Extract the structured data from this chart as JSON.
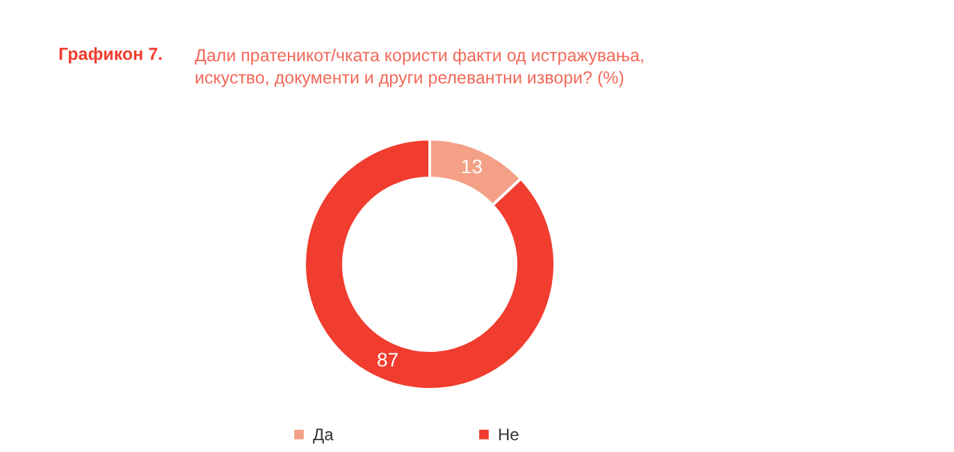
{
  "chart_data": {
    "type": "donut",
    "title": "Графикон 7.",
    "subtitle": "Дали пратеникот/чката користи факти од истражувања, искуство, документи и други релевантни извори? (%)",
    "categories": [
      "Да",
      "Не"
    ],
    "values": [
      13,
      87
    ],
    "colors": [
      "#f4a086",
      "#f03d2f"
    ],
    "data_labels": true,
    "legend": "bottom"
  }
}
